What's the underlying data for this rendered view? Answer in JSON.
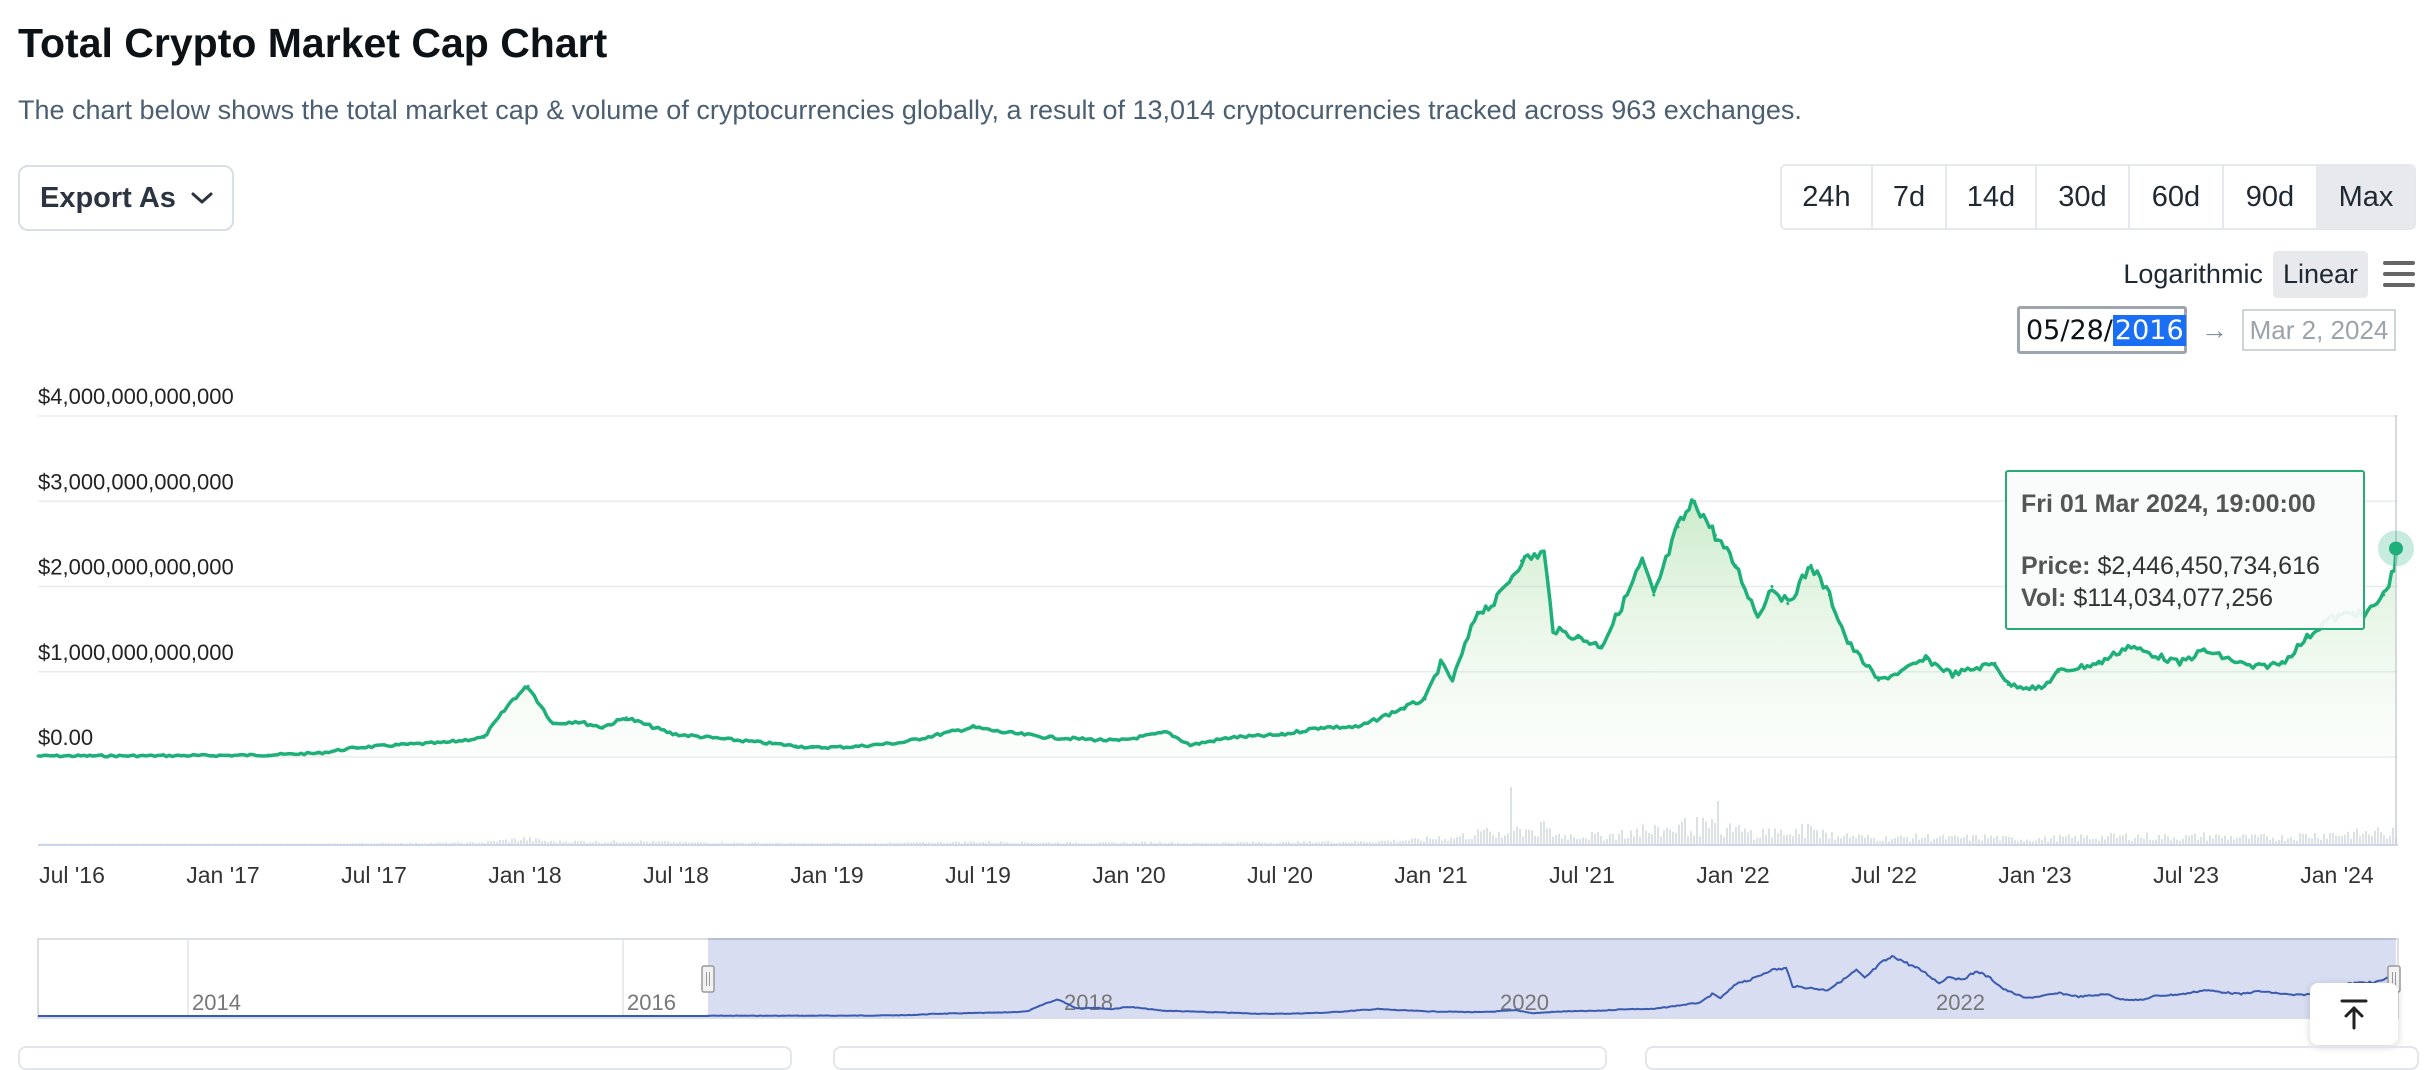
{
  "header": {
    "title": "Total Crypto Market Cap Chart",
    "subtitle": "The chart below shows the total market cap & volume of cryptocurrencies globally, a result of 13,014 cryptocurrencies tracked across 963 exchanges."
  },
  "toolbar": {
    "export_label": "Export As",
    "ranges": [
      "24h",
      "7d",
      "14d",
      "30d",
      "60d",
      "90d",
      "Max"
    ],
    "active_range": "Max",
    "scale_options": [
      "Logarithmic",
      "Linear"
    ],
    "active_scale": "Linear",
    "date_from_prefix": "05/28/",
    "date_from_selected": "2016",
    "date_to": "Mar 2, 2024"
  },
  "tooltip": {
    "date": "Fri 01 Mar 2024, 19:00:00",
    "price_label": "Price:",
    "price_value": "$2,446,450,734,616",
    "vol_label": "Vol:",
    "vol_value": "$114,034,077,256"
  },
  "colors": {
    "line": "#1fb07a",
    "navigator_line": "#3a5bb0",
    "navigator_fill": "#d6dbf0",
    "tooltip_border": "#27ad73"
  },
  "chart_data": {
    "type": "area",
    "title": "Total Crypto Market Cap Chart",
    "y_tick_labels": [
      "$4,000,000,000,000",
      "$3,000,000,000,000",
      "$2,000,000,000,000",
      "$1,000,000,000,000",
      "$0.00"
    ],
    "ylim": [
      0,
      4000000000000
    ],
    "x_tick_labels": [
      "Jul '16",
      "Jan '17",
      "Jul '17",
      "Jan '18",
      "Jul '18",
      "Jan '19",
      "Jul '19",
      "Jan '20",
      "Jul '20",
      "Jan '21",
      "Jul '21",
      "Jan '22",
      "Jul '22",
      "Jan '23",
      "Jul '23",
      "Jan '24"
    ],
    "grid": true,
    "legend": "none",
    "series": [
      {
        "name": "Price",
        "x": [
          "2016-05-28",
          "2016-07-01",
          "2016-10-01",
          "2017-01-01",
          "2017-03-01",
          "2017-05-01",
          "2017-06-15",
          "2017-08-01",
          "2017-10-01",
          "2017-11-15",
          "2017-12-20",
          "2018-01-07",
          "2018-02-06",
          "2018-03-05",
          "2018-04-06",
          "2018-05-05",
          "2018-06-30",
          "2018-09-01",
          "2018-11-25",
          "2018-12-15",
          "2019-02-01",
          "2019-04-01",
          "2019-06-26",
          "2019-08-01",
          "2019-09-25",
          "2019-12-18",
          "2020-02-14",
          "2020-03-13",
          "2020-05-01",
          "2020-07-01",
          "2020-08-17",
          "2020-10-01",
          "2020-11-25",
          "2020-12-20",
          "2021-01-08",
          "2021-01-22",
          "2021-02-21",
          "2021-03-13",
          "2021-04-15",
          "2021-05-12",
          "2021-05-23",
          "2021-06-22",
          "2021-07-20",
          "2021-08-20",
          "2021-09-07",
          "2021-09-21",
          "2021-10-20",
          "2021-11-09",
          "2021-12-04",
          "2021-12-28",
          "2022-01-24",
          "2022-02-10",
          "2022-03-01",
          "2022-03-29",
          "2022-04-20",
          "2022-05-12",
          "2022-06-18",
          "2022-07-15",
          "2022-08-14",
          "2022-09-15",
          "2022-11-05",
          "2022-11-21",
          "2022-12-31",
          "2023-01-20",
          "2023-03-10",
          "2023-04-14",
          "2023-06-15",
          "2023-07-14",
          "2023-09-11",
          "2023-10-16",
          "2023-11-15",
          "2023-12-08",
          "2024-01-10",
          "2024-01-23",
          "2024-02-15",
          "2024-02-28",
          "2024-03-01"
        ],
        "values": [
          12000000000,
          13000000000,
          14000000000,
          18000000000,
          24000000000,
          45000000000,
          110000000000,
          140000000000,
          170000000000,
          230000000000,
          680000000000,
          830000000000,
          390000000000,
          420000000000,
          350000000000,
          460000000000,
          270000000000,
          210000000000,
          130000000000,
          110000000000,
          120000000000,
          170000000000,
          350000000000,
          290000000000,
          230000000000,
          190000000000,
          290000000000,
          140000000000,
          230000000000,
          260000000000,
          350000000000,
          350000000000,
          580000000000,
          680000000000,
          1100000000000,
          900000000000,
          1700000000000,
          1800000000000,
          2300000000000,
          2400000000000,
          1500000000000,
          1400000000000,
          1300000000000,
          1900000000000,
          2300000000000,
          1900000000000,
          2700000000000,
          3000000000000,
          2600000000000,
          2250000000000,
          1650000000000,
          2000000000000,
          1800000000000,
          2250000000000,
          1900000000000,
          1350000000000,
          900000000000,
          1000000000000,
          1150000000000,
          970000000000,
          1100000000000,
          850000000000,
          800000000000,
          1000000000000,
          1100000000000,
          1300000000000,
          1100000000000,
          1250000000000,
          1050000000000,
          1100000000000,
          1400000000000,
          1600000000000,
          1700000000000,
          1650000000000,
          1900000000000,
          2200000000000,
          2446450734616
        ]
      }
    ],
    "navigator": {
      "x_tick_labels": [
        "2014",
        "2016",
        "2018",
        "2020",
        "2022"
      ],
      "selected_range": [
        "2016-05-28",
        "2024-03-02"
      ]
    }
  }
}
